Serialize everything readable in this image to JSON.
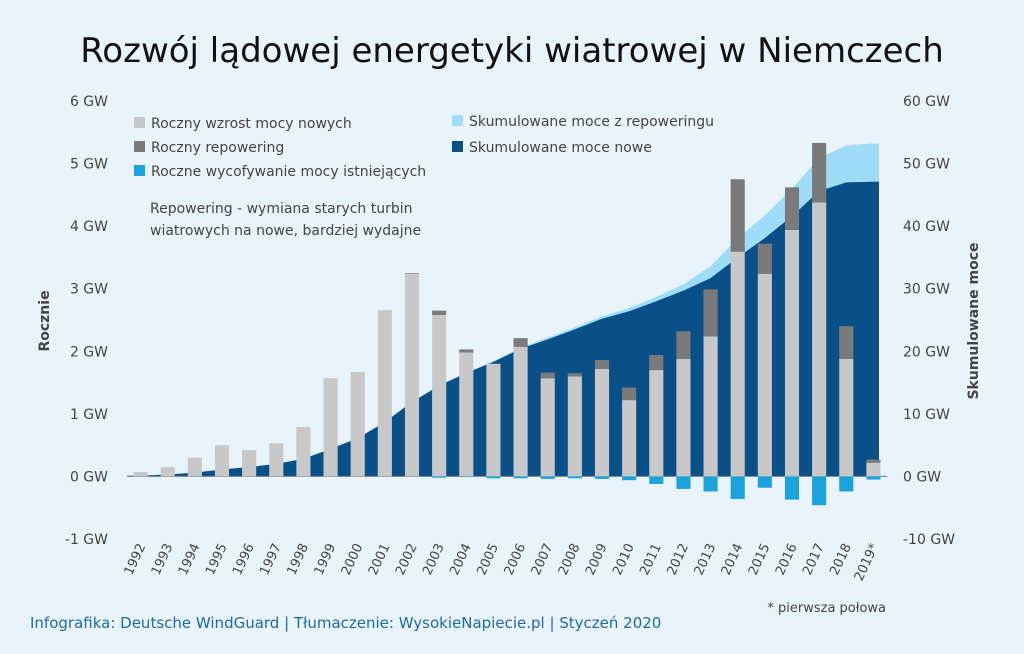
{
  "title": "Rozwój lądowej energetyki wiatrowej w Niemczech",
  "credit": "Infografika: Deutsche WindGuard | Tłumaczenie: WysokieNapiecie.pl | Styczeń 2020",
  "footnote": "* pierwsza połowa",
  "note_lines": [
    "Repowering - wymiana starych turbin",
    "wiatrowych na nowe, bardziej wydajne"
  ],
  "colors": {
    "new_annual": "#c8c8c8",
    "repowering_annual": "#7a7a7a",
    "decommissioning": "#1aa3dd",
    "cum_new": "#0a5088",
    "cum_repower": "#9fdcf7"
  },
  "chart_data": {
    "type": "bar",
    "categories": [
      "1992",
      "1993",
      "1994",
      "1995",
      "1996",
      "1997",
      "1998",
      "1999",
      "2000",
      "2001",
      "2002",
      "2003",
      "2004",
      "2005",
      "2006",
      "2007",
      "2008",
      "2009",
      "2010",
      "2011",
      "2012",
      "2013",
      "2014",
      "2015",
      "2016",
      "2017",
      "2018",
      "2019*"
    ],
    "ylabel": "Rocznie",
    "y2label": "Skumulowane moce",
    "ylim": [
      -1,
      6
    ],
    "y2lim": [
      -10,
      60
    ],
    "yticks": [
      "-1 GW",
      "0 GW",
      "1 GW",
      "2 GW",
      "3 GW",
      "4 GW",
      "5 GW",
      "6 GW"
    ],
    "y2ticks": [
      "-10 GW",
      "0 GW",
      "10 GW",
      "20 GW",
      "30 GW",
      "40 GW",
      "50 GW",
      "60 GW"
    ],
    "legend": [
      {
        "key": "new_annual",
        "label": "Roczny wzrost mocy nowych"
      },
      {
        "key": "repowering_annual",
        "label": "Roczny repowering"
      },
      {
        "key": "decommissioning",
        "label": "Roczne wycofywanie mocy istniejących"
      },
      {
        "key": "cum_repower",
        "label": "Skumulowane moce z repoweringu"
      },
      {
        "key": "cum_new",
        "label": "Skumulowane moce nowe"
      }
    ],
    "series": [
      {
        "key": "new_annual",
        "name": "Roczny wzrost mocy nowych",
        "axis": "left",
        "values": [
          0.07,
          0.15,
          0.3,
          0.5,
          0.42,
          0.53,
          0.79,
          1.57,
          1.67,
          2.66,
          3.24,
          2.58,
          1.98,
          1.8,
          2.07,
          1.57,
          1.6,
          1.72,
          1.22,
          1.7,
          1.88,
          2.24,
          3.59,
          3.24,
          3.94,
          4.38,
          1.88,
          0.22
        ]
      },
      {
        "key": "repowering_annual",
        "name": "Roczny repowering",
        "axis": "left",
        "values": [
          0,
          0,
          0,
          0,
          0,
          0,
          0,
          0,
          0,
          0,
          0.01,
          0.07,
          0.05,
          0,
          0.14,
          0.09,
          0.05,
          0.14,
          0.2,
          0.24,
          0.44,
          0.75,
          1.16,
          0.48,
          0.68,
          0.95,
          0.52,
          0.05
        ]
      },
      {
        "key": "decommissioning",
        "name": "Roczne wycofywanie mocy istniejących",
        "axis": "left",
        "values": [
          0,
          0,
          0,
          0,
          0,
          0,
          0,
          0,
          0,
          0,
          0,
          -0.02,
          -0.01,
          -0.03,
          -0.03,
          -0.04,
          -0.03,
          -0.04,
          -0.06,
          -0.12,
          -0.2,
          -0.24,
          -0.36,
          -0.18,
          -0.37,
          -0.46,
          -0.24,
          -0.05
        ]
      },
      {
        "key": "cum_new",
        "name": "Skumulowane moce nowe",
        "axis": "right",
        "values": [
          0.1,
          0.3,
          0.6,
          1.1,
          1.5,
          2.0,
          2.8,
          4.4,
          6.1,
          8.7,
          11.9,
          14.5,
          16.5,
          18.3,
          20.4,
          21.9,
          23.5,
          25.2,
          26.4,
          28.0,
          29.7,
          31.7,
          35.0,
          38.1,
          41.6,
          45.6,
          47.0,
          47.1
        ]
      },
      {
        "key": "cum_repower",
        "name": "Skumulowane moce z repoweringu",
        "axis": "right",
        "values": [
          0.1,
          0.3,
          0.6,
          1.1,
          1.5,
          2.0,
          2.8,
          4.4,
          6.1,
          8.7,
          11.9,
          14.6,
          16.6,
          18.4,
          20.6,
          22.2,
          23.8,
          25.6,
          26.9,
          28.7,
          30.7,
          33.6,
          38.1,
          41.7,
          46.0,
          50.9,
          52.9,
          53.2
        ]
      }
    ]
  }
}
